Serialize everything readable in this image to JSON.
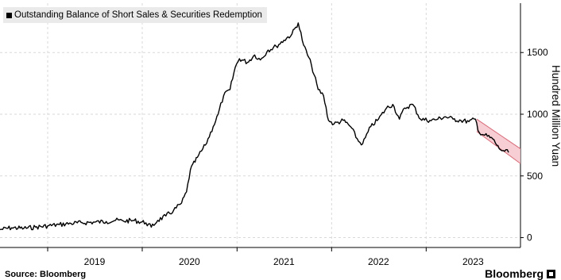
{
  "chart_data": {
    "type": "line",
    "title": "",
    "legend": {
      "entries": [
        "Outstanding Balance of Short Sales & Securities Redemption"
      ],
      "placement": "top-left"
    },
    "ylabel": "Hundred Million Yuan",
    "ylim": [
      -80,
      1900
    ],
    "yticks": [
      0,
      500,
      1000,
      1500
    ],
    "xlim": [
      "2018-07-01",
      "2023-12-31"
    ],
    "xticks": [
      {
        "label": "2019",
        "date": "2019-07-01"
      },
      {
        "label": "2020",
        "date": "2020-07-01"
      },
      {
        "label": "2021",
        "date": "2021-07-01"
      },
      {
        "label": "2022",
        "date": "2022-07-01"
      },
      {
        "label": "2023",
        "date": "2023-07-01"
      }
    ],
    "year_boundaries": [
      "2019-01-01",
      "2020-01-01",
      "2021-01-01",
      "2022-01-01",
      "2023-01-01"
    ],
    "grid": true,
    "series": [
      {
        "name": "Outstanding Balance of Short Sales & Securities Redemption",
        "color": "#000000",
        "points": [
          [
            "2018-07-01",
            65
          ],
          [
            "2018-08-15",
            80
          ],
          [
            "2018-10-01",
            75
          ],
          [
            "2018-11-15",
            85
          ],
          [
            "2019-01-01",
            95
          ],
          [
            "2019-02-15",
            105
          ],
          [
            "2019-04-01",
            115
          ],
          [
            "2019-05-15",
            120
          ],
          [
            "2019-07-01",
            125
          ],
          [
            "2019-08-15",
            130
          ],
          [
            "2019-09-20",
            140
          ],
          [
            "2019-10-20",
            135
          ],
          [
            "2019-12-01",
            138
          ],
          [
            "2020-01-15",
            120
          ],
          [
            "2020-02-05",
            85
          ],
          [
            "2020-03-01",
            140
          ],
          [
            "2020-04-01",
            175
          ],
          [
            "2020-05-01",
            220
          ],
          [
            "2020-06-01",
            280
          ],
          [
            "2020-06-20",
            370
          ],
          [
            "2020-07-05",
            550
          ],
          [
            "2020-08-01",
            650
          ],
          [
            "2020-09-01",
            750
          ],
          [
            "2020-10-01",
            900
          ],
          [
            "2020-10-20",
            1000
          ],
          [
            "2020-11-10",
            1150
          ],
          [
            "2020-12-05",
            1200
          ],
          [
            "2020-12-25",
            1380
          ],
          [
            "2021-01-10",
            1450
          ],
          [
            "2021-02-10",
            1420
          ],
          [
            "2021-03-10",
            1480
          ],
          [
            "2021-04-01",
            1440
          ],
          [
            "2021-05-01",
            1520
          ],
          [
            "2021-06-01",
            1550
          ],
          [
            "2021-07-01",
            1600
          ],
          [
            "2021-08-01",
            1650
          ],
          [
            "2021-08-25",
            1740
          ],
          [
            "2021-09-15",
            1560
          ],
          [
            "2021-10-15",
            1400
          ],
          [
            "2021-11-10",
            1200
          ],
          [
            "2021-12-01",
            1150
          ],
          [
            "2021-12-20",
            950
          ],
          [
            "2022-01-10",
            920
          ],
          [
            "2022-02-15",
            950
          ],
          [
            "2022-03-15",
            900
          ],
          [
            "2022-04-15",
            780
          ],
          [
            "2022-05-01",
            760
          ],
          [
            "2022-06-01",
            900
          ],
          [
            "2022-07-01",
            960
          ],
          [
            "2022-08-01",
            1050
          ],
          [
            "2022-08-25",
            1080
          ],
          [
            "2022-09-20",
            960
          ],
          [
            "2022-10-10",
            1050
          ],
          [
            "2022-11-10",
            1080
          ],
          [
            "2022-12-10",
            960
          ],
          [
            "2023-01-15",
            950
          ],
          [
            "2023-02-15",
            960
          ],
          [
            "2023-03-15",
            980
          ],
          [
            "2023-04-15",
            960
          ],
          [
            "2023-05-15",
            950
          ],
          [
            "2023-06-15",
            940
          ],
          [
            "2023-07-10",
            960
          ],
          [
            "2023-07-25",
            850
          ],
          [
            "2023-08-15",
            830
          ],
          [
            "2023-09-15",
            800
          ],
          [
            "2023-10-10",
            720
          ],
          [
            "2023-10-31",
            700
          ],
          [
            "2023-11-15",
            690
          ]
        ]
      }
    ],
    "trend_channel": {
      "color": "#f4c6cc",
      "edge_color": "#d86a78",
      "upper": [
        [
          "2023-07-15",
          960
        ],
        [
          "2023-12-31",
          720
        ]
      ],
      "lower": [
        [
          "2023-07-15",
          860
        ],
        [
          "2023-12-31",
          600
        ]
      ]
    }
  },
  "footer": {
    "source": "Source: Bloomberg",
    "brand": "Bloomberg"
  }
}
